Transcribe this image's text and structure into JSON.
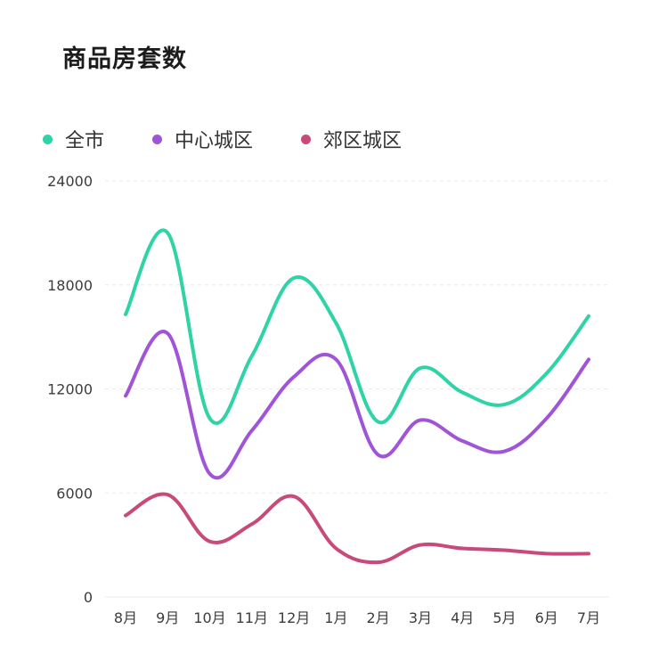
{
  "title": "商品房套数",
  "colors": {
    "grid": "#e9e9e9",
    "axis_text": "#3c3c3c"
  },
  "chart_data": {
    "type": "line",
    "title": "商品房套数",
    "xlabel": "",
    "ylabel": "",
    "categories": [
      "8月",
      "9月",
      "10月",
      "11月",
      "12月",
      "1月",
      "2月",
      "3月",
      "4月",
      "5月",
      "6月",
      "7月"
    ],
    "y_ticks": [
      "0",
      "6000",
      "12000",
      "18000",
      "24000"
    ],
    "ylim": [
      0,
      24000
    ],
    "grid": true,
    "smooth": true,
    "legend_position": "top-left",
    "series": [
      {
        "name": "全市",
        "color": "#2fd3a5",
        "values": [
          16300,
          21000,
          10300,
          13900,
          18400,
          15800,
          10100,
          13200,
          11800,
          11100,
          12900,
          16200
        ]
      },
      {
        "name": "中心城区",
        "color": "#a055d8",
        "values": [
          11600,
          15200,
          7100,
          9600,
          12700,
          13700,
          8200,
          10200,
          9000,
          8400,
          10300,
          13700
        ]
      },
      {
        "name": "郊区城区",
        "color": "#c74a7a",
        "values": [
          4700,
          5900,
          3200,
          4200,
          5800,
          2800,
          2000,
          3000,
          2800,
          2700,
          2500,
          2500
        ]
      }
    ]
  }
}
